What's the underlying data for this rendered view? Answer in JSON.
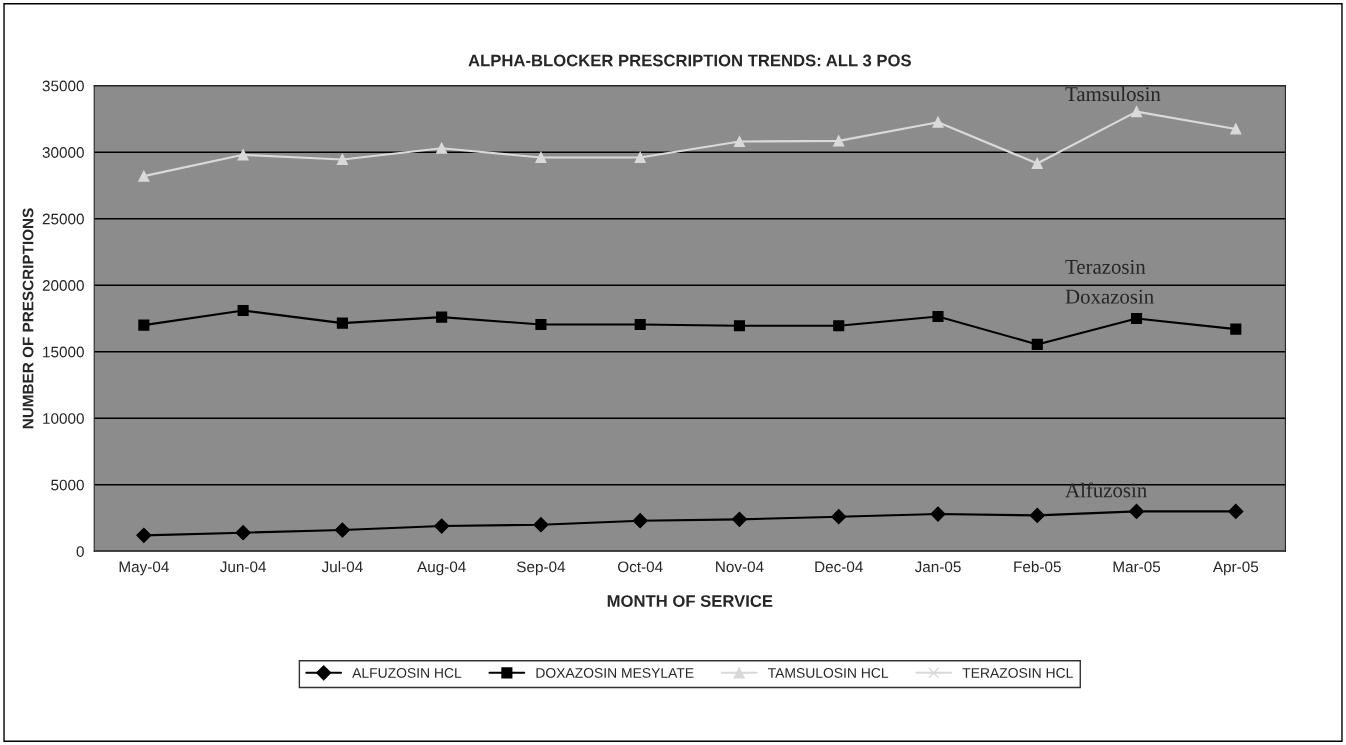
{
  "chart_data": {
    "type": "line",
    "title": "ALPHA-BLOCKER PRESCRIPTION TRENDS: ALL 3 POS",
    "xlabel": "MONTH OF SERVICE",
    "ylabel": "NUMBER OF PRESCRIPTIONS",
    "categories": [
      "May-04",
      "Jun-04",
      "Jul-04",
      "Aug-04",
      "Sep-04",
      "Oct-04",
      "Nov-04",
      "Dec-04",
      "Jan-05",
      "Feb-05",
      "Mar-05",
      "Apr-05"
    ],
    "series": [
      {
        "name": "ALFUZOSIN HCL",
        "color": "#000000",
        "marker": "diamond",
        "values": [
          1200,
          1400,
          1600,
          1900,
          2000,
          2300,
          2400,
          2600,
          2800,
          2700,
          3000,
          3000
        ]
      },
      {
        "name": "DOXAZOSIN MESYLATE",
        "color": "#000000",
        "marker": "square",
        "values": [
          17000,
          18100,
          17150,
          17600,
          17050,
          17050,
          16950,
          16950,
          17650,
          15550,
          17500,
          16700
        ]
      },
      {
        "name": "TAMSULOSIN HCL",
        "color": "#d9d9d9",
        "marker": "triangle",
        "values": [
          28200,
          29800,
          29450,
          30300,
          29600,
          29600,
          30800,
          30850,
          32250,
          29150,
          33050,
          31750
        ]
      },
      {
        "name": "TERAZOSIN HCL",
        "color": "#d9d9d9",
        "marker": "cross",
        "values": [
          null,
          null,
          null,
          null,
          null,
          null,
          null,
          null,
          null,
          null,
          null,
          null
        ]
      }
    ],
    "ylim": [
      0,
      35000
    ],
    "yticks": [
      0,
      5000,
      10000,
      15000,
      20000,
      25000,
      30000,
      35000
    ],
    "grid": "y",
    "legend": "bottom",
    "annotations": [
      "Tamsulosin",
      "Terazosin",
      "Doxazosin",
      "Alfuzosin"
    ]
  }
}
